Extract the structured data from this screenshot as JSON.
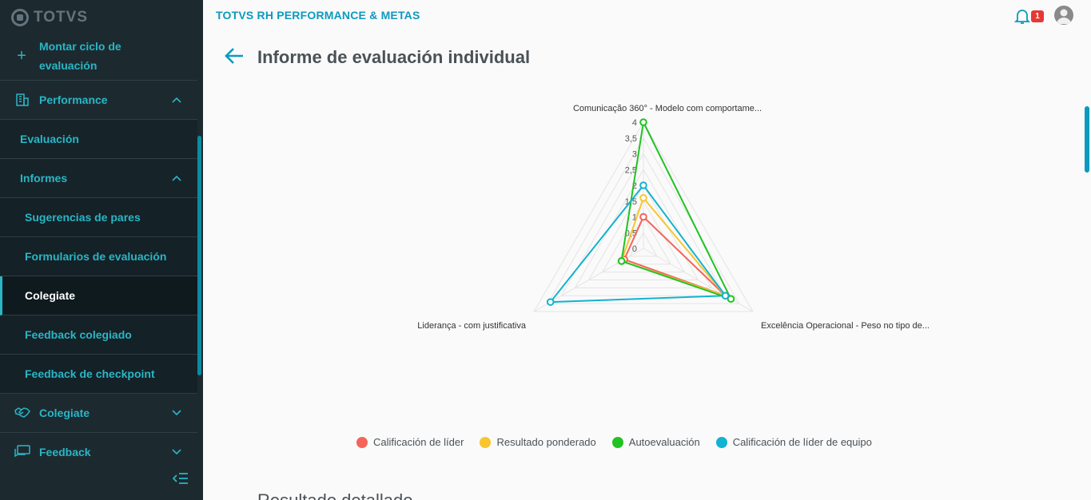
{
  "brand": {
    "logo_text": "TOTVS"
  },
  "header": {
    "app_title": "TOTVS RH PERFORMANCE & METAS",
    "notification_count": "1"
  },
  "page": {
    "title": "Informe de evaluación individual",
    "next_section": "Resultado detallado"
  },
  "sidebar": {
    "items": [
      {
        "label": "Montar ciclo de evaluación",
        "icon": "plus-icon"
      },
      {
        "label": "Performance",
        "icon": "building-icon",
        "expanded": true
      },
      {
        "label": "Evaluación"
      },
      {
        "label": "Informes",
        "expanded": true
      },
      {
        "label": "Sugerencias de pares"
      },
      {
        "label": "Formularios de evaluación"
      },
      {
        "label": "Colegiate",
        "active": true
      },
      {
        "label": "Feedback colegiado"
      },
      {
        "label": "Feedback de checkpoint"
      },
      {
        "label": "Colegiate",
        "icon": "handshake-icon",
        "expanded": false
      },
      {
        "label": "Feedback",
        "icon": "chat-icon",
        "expanded": false
      }
    ]
  },
  "colors": {
    "accent": "#0c9abe",
    "sidebar_bg": "#1c2a30",
    "leader": "#f4645a",
    "weighted": "#f7c62f",
    "self": "#22c222",
    "team_leader": "#12b3d0"
  },
  "chart_data": {
    "type": "radar",
    "axes": [
      "Comunicação 360° - Modelo com comportame...",
      "Excelência Operacional - Peso no tipo de...",
      "Liderança - com justificativa"
    ],
    "ticks": [
      "0",
      "0,5",
      "1",
      "1,5",
      "2",
      "2,5",
      "3",
      "3,5",
      "4"
    ],
    "range": [
      0,
      4
    ],
    "series": [
      {
        "name": "Calificación de líder",
        "color": "#f4645a",
        "values": [
          1,
          3,
          0.7
        ]
      },
      {
        "name": "Resultado ponderado",
        "color": "#f7c62f",
        "values": [
          1.6,
          3,
          0.8
        ]
      },
      {
        "name": "Autoevaluación",
        "color": "#22c222",
        "values": [
          4,
          3.2,
          0.8
        ]
      },
      {
        "name": "Calificación de líder de equipo",
        "color": "#12b3d0",
        "values": [
          2,
          3,
          3.4
        ]
      }
    ],
    "legend_position": "bottom"
  }
}
